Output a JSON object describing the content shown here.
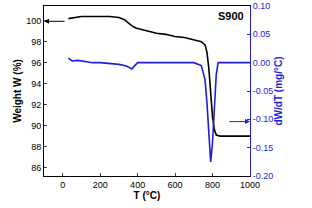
{
  "chart_data": {
    "type": "line",
    "annotations": [
      "S900"
    ],
    "x_label": "T (°C)",
    "y_label": "Weight W (%)",
    "y2_label": "dW/dT (mg/°C)",
    "xlim": [
      -100,
      1000
    ],
    "xticks": [
      0,
      200,
      400,
      600,
      800,
      1000
    ],
    "ylim": [
      85.2,
      101.4
    ],
    "yticks": [
      86,
      88,
      90,
      92,
      94,
      96,
      98,
      100
    ],
    "y2lim": [
      -0.2,
      0.1
    ],
    "y2ticks": [
      {
        "value": -0.2,
        "label": "-0.20"
      },
      {
        "value": -0.15,
        "label": "-0.15"
      },
      {
        "value": -0.1,
        "label": "-0.10"
      },
      {
        "value": -0.05,
        "label": "-0.05"
      },
      {
        "value": 0,
        "label": "0.00"
      },
      {
        "value": 0.05,
        "label": "0.05"
      },
      {
        "value": 0.1,
        "label": "0.10"
      }
    ],
    "grid": false,
    "series": [
      {
        "name": "Weight W (%)",
        "color": "#000000",
        "axis": "y",
        "x": [
          30,
          60,
          100,
          150,
          200,
          250,
          300,
          330,
          350,
          370,
          390,
          410,
          450,
          500,
          550,
          600,
          650,
          700,
          740,
          760,
          770,
          780,
          790,
          800,
          810,
          820,
          840,
          900,
          1000
        ],
        "values": [
          100.2,
          100.3,
          100.4,
          100.4,
          100.4,
          100.4,
          100.3,
          100.1,
          99.8,
          99.5,
          99.3,
          99.2,
          99.0,
          98.8,
          98.7,
          98.5,
          98.4,
          98.2,
          98.0,
          97.7,
          97.0,
          95.5,
          93.0,
          90.8,
          89.6,
          89.1,
          89.0,
          89.0,
          89.0
        ]
      },
      {
        "name": "dW/dT (mg/°C)",
        "color": "#1f1fd6",
        "axis": "y2",
        "x": [
          30,
          50,
          80,
          120,
          160,
          200,
          250,
          300,
          340,
          360,
          370,
          380,
          400,
          450,
          500,
          600,
          700,
          740,
          760,
          770,
          780,
          790,
          800,
          810,
          820,
          830,
          850,
          900,
          1000
        ],
        "values": [
          0.008,
          0.003,
          0.004,
          0.002,
          0.0,
          0.0,
          -0.002,
          -0.003,
          -0.006,
          -0.01,
          -0.011,
          -0.007,
          0.0,
          0.0,
          0.0,
          0.0,
          0.0,
          -0.005,
          -0.03,
          -0.07,
          -0.13,
          -0.175,
          -0.14,
          -0.07,
          -0.02,
          0.0,
          0.0,
          0.0,
          0.0
        ]
      }
    ]
  }
}
